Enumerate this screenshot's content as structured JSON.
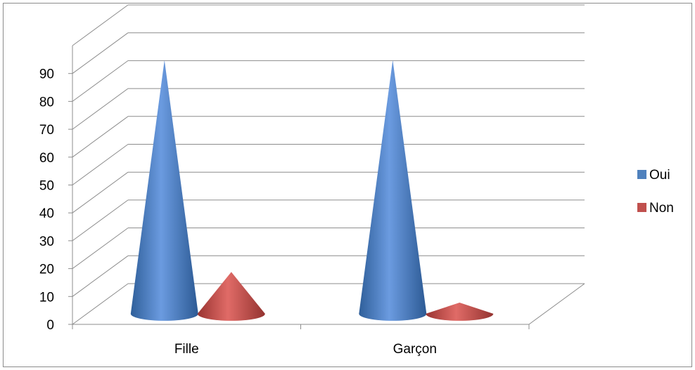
{
  "chart_data": {
    "type": "bar",
    "style": "3d-cone",
    "categories": [
      "Fille",
      "Garçon"
    ],
    "series": [
      {
        "name": "Oui",
        "values": [
          90,
          90
        ],
        "color": "#4f81bd"
      },
      {
        "name": "Non",
        "values": [
          14,
          3
        ],
        "color": "#c0504d"
      }
    ],
    "ylim": [
      0,
      100
    ],
    "yticks": [
      0,
      10,
      20,
      30,
      40,
      50,
      60,
      70,
      80,
      90
    ],
    "grid": true,
    "legend_position": "right"
  }
}
